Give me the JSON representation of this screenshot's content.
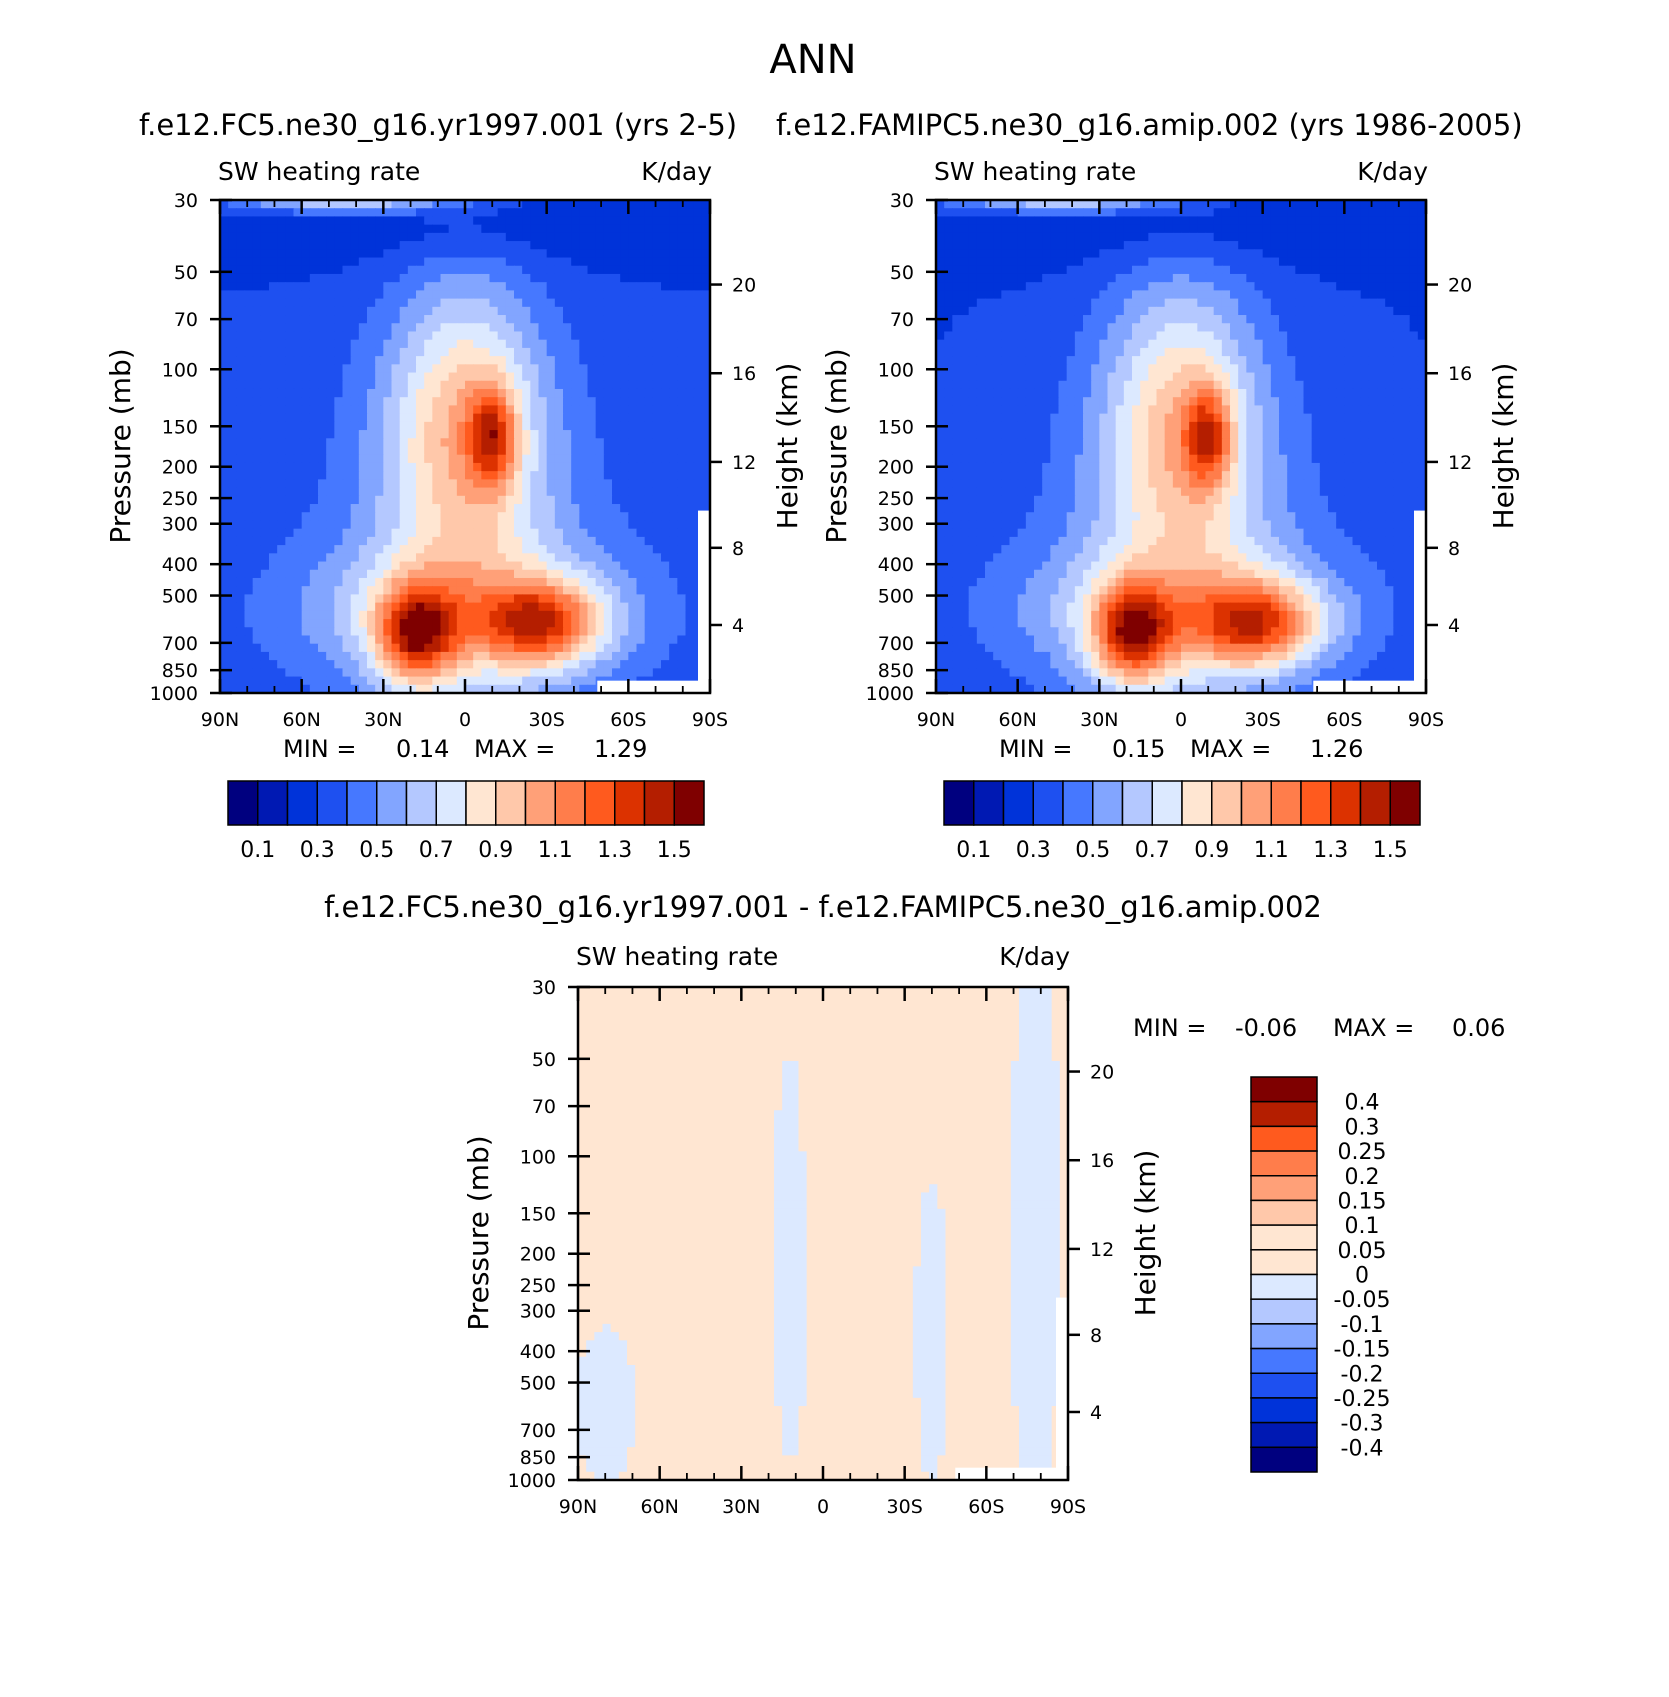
{
  "figure_title": "ANN",
  "chart_data": [
    {
      "type": "heatmap",
      "panel": "top-left",
      "title": "f.e12.FC5.ne30_g16.yr1997.001 (yrs 2-5)",
      "variable": "SW heating rate",
      "units": "K/day",
      "xlabel": "",
      "ylabel": "Pressure (mb)",
      "ylabel_right": "Height (km)",
      "x_ticks": [
        "90N",
        "60N",
        "30N",
        "0",
        "30S",
        "60S",
        "90S"
      ],
      "y_ticks": [
        30,
        50,
        70,
        100,
        150,
        200,
        250,
        300,
        400,
        500,
        700,
        850,
        1000
      ],
      "y_ticks_right": [
        20,
        16,
        12,
        8,
        4
      ],
      "ylim": [
        1000,
        30
      ],
      "y_scale": "log",
      "grid": false,
      "stats": {
        "min_label": "MIN =",
        "min_value": "0.14",
        "max_label": "MAX =",
        "max_value": "1.29"
      },
      "colorbar": {
        "orientation": "horizontal",
        "labels": [
          "0.1",
          "0.3",
          "0.5",
          "0.7",
          "0.9",
          "1.1",
          "1.3",
          "1.5"
        ],
        "levels": [
          0.1,
          0.2,
          0.3,
          0.4,
          0.5,
          0.6,
          0.7,
          0.8,
          0.9,
          1.0,
          1.1,
          1.2,
          1.3,
          1.4,
          1.5
        ],
        "colors": [
          "#00007f",
          "#0019b3",
          "#0033d9",
          "#1e50f0",
          "#4678ff",
          "#82a5ff",
          "#b4c8ff",
          "#dce9ff",
          "#ffe6d2",
          "#ffc8aa",
          "#ffa078",
          "#ff7d4b",
          "#ff5a1e",
          "#dc3200",
          "#b41e00",
          "#7f0000"
        ]
      },
      "maxima": [
        {
          "lat": -18,
          "p": 880,
          "value": 1.29
        },
        {
          "lat": 10,
          "p": 520,
          "value": 1.1
        },
        {
          "lat": 28,
          "p": 870,
          "value": 1.2
        }
      ]
    },
    {
      "type": "heatmap",
      "panel": "top-right",
      "title": "f.e12.FAMIPC5.ne30_g16.amip.002 (yrs 1986-2005)",
      "variable": "SW heating rate",
      "units": "K/day",
      "xlabel": "",
      "ylabel": "Pressure (mb)",
      "ylabel_right": "Height (km)",
      "x_ticks": [
        "90N",
        "60N",
        "30N",
        "0",
        "30S",
        "60S",
        "90S"
      ],
      "y_ticks": [
        30,
        50,
        70,
        100,
        150,
        200,
        250,
        300,
        400,
        500,
        700,
        850,
        1000
      ],
      "y_ticks_right": [
        20,
        16,
        12,
        8,
        4
      ],
      "ylim": [
        1000,
        30
      ],
      "y_scale": "log",
      "grid": false,
      "stats": {
        "min_label": "MIN =",
        "min_value": "0.15",
        "max_label": "MAX =",
        "max_value": "1.26"
      },
      "colorbar": {
        "orientation": "horizontal",
        "labels": [
          "0.1",
          "0.3",
          "0.5",
          "0.7",
          "0.9",
          "1.1",
          "1.3",
          "1.5"
        ],
        "levels": [
          0.1,
          0.2,
          0.3,
          0.4,
          0.5,
          0.6,
          0.7,
          0.8,
          0.9,
          1.0,
          1.1,
          1.2,
          1.3,
          1.4,
          1.5
        ],
        "colors": [
          "#00007f",
          "#0019b3",
          "#0033d9",
          "#1e50f0",
          "#4678ff",
          "#82a5ff",
          "#b4c8ff",
          "#dce9ff",
          "#ffe6d2",
          "#ffc8aa",
          "#ffa078",
          "#ff7d4b",
          "#ff5a1e",
          "#dc3200",
          "#b41e00",
          "#7f0000"
        ]
      },
      "maxima": [
        {
          "lat": -18,
          "p": 880,
          "value": 1.26
        },
        {
          "lat": 10,
          "p": 520,
          "value": 1.1
        },
        {
          "lat": 28,
          "p": 870,
          "value": 1.2
        }
      ]
    },
    {
      "type": "heatmap",
      "panel": "bottom",
      "title": "f.e12.FC5.ne30_g16.yr1997.001 - f.e12.FAMIPC5.ne30_g16.amip.002",
      "variable": "SW heating rate",
      "units": "K/day",
      "xlabel": "",
      "ylabel": "Pressure (mb)",
      "ylabel_right": "Height (km)",
      "x_ticks": [
        "90N",
        "60N",
        "30N",
        "0",
        "30S",
        "60S",
        "90S"
      ],
      "y_ticks": [
        30,
        50,
        70,
        100,
        150,
        200,
        250,
        300,
        400,
        500,
        700,
        850,
        1000
      ],
      "y_ticks_right": [
        20,
        16,
        12,
        8,
        4
      ],
      "ylim": [
        1000,
        30
      ],
      "y_scale": "log",
      "grid": false,
      "stats": {
        "min_label": "MIN =",
        "min_value": "-0.06",
        "max_label": "MAX =",
        "max_value": "0.06"
      },
      "colorbar": {
        "orientation": "vertical",
        "labels": [
          "0.4",
          "0.3",
          "0.25",
          "0.2",
          "0.15",
          "0.1",
          "0.05",
          "0",
          "-0.05",
          "-0.1",
          "-0.15",
          "-0.2",
          "-0.25",
          "-0.3",
          "-0.4"
        ],
        "levels": [
          0.4,
          0.3,
          0.25,
          0.2,
          0.15,
          0.1,
          0.05,
          0,
          -0.05,
          -0.1,
          -0.15,
          -0.2,
          -0.25,
          -0.3,
          -0.4
        ],
        "colors": [
          "#7f0000",
          "#b41e00",
          "#ff5a1e",
          "#ff7d4b",
          "#ffa078",
          "#ffc8aa",
          "#ffe6d2",
          "#ffe6d2",
          "#dce9ff",
          "#b4c8ff",
          "#82a5ff",
          "#4678ff",
          "#1e50f0",
          "#0033d9",
          "#0019b3",
          "#00007f"
        ]
      },
      "maxima": [
        {
          "lat": 0,
          "p": 220,
          "value": 0.06
        }
      ]
    }
  ]
}
